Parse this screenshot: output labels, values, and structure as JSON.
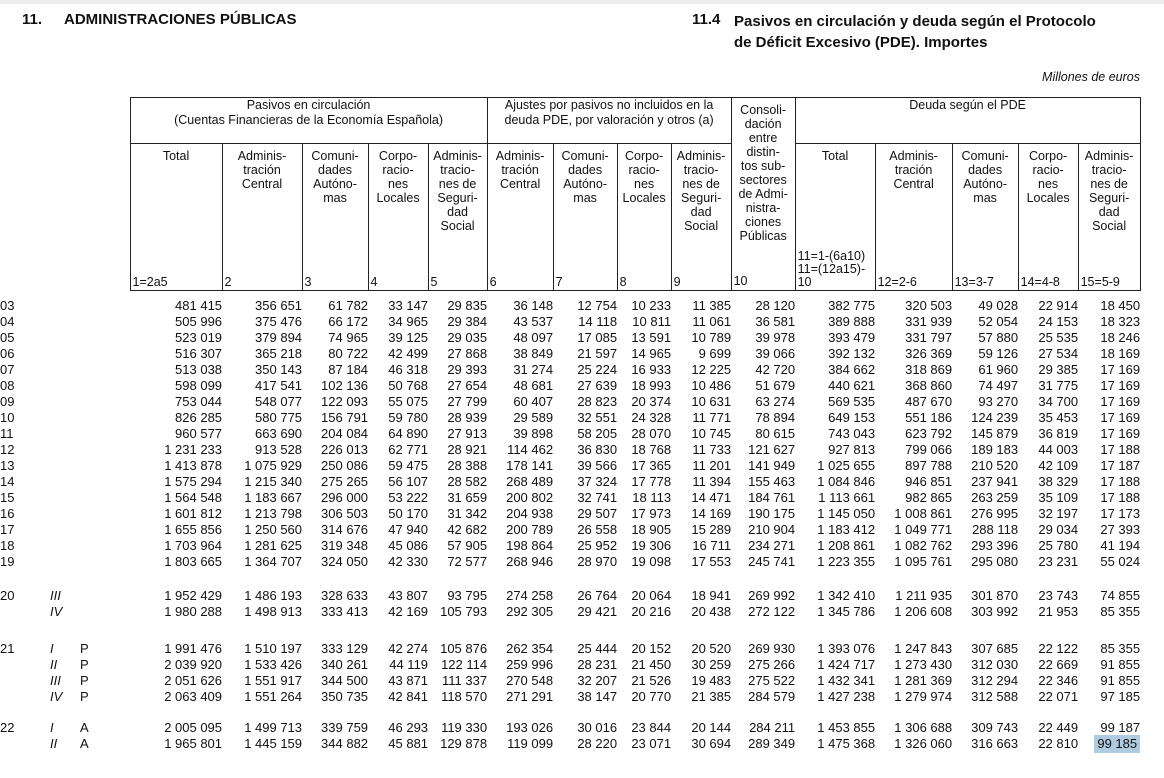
{
  "page": {
    "section_number": "11.",
    "section_title": "ADMINISTRACIONES PÚBLICAS",
    "table_number": "11.4",
    "table_title": "Pasivos en circulación y deuda según el Protocolo\nde Déficit Excesivo (PDE). Importes",
    "units_note": "Millones de euros"
  },
  "table": {
    "groups": [
      {
        "title": "Pasivos en circulación\n(Cuentas Financieras de la Economía Española)"
      },
      {
        "title": "Ajustes por pasivos no incluidos en la\ndeuda PDE, por valoración y otros (a)"
      },
      {
        "title": "Deuda según el PDE"
      }
    ],
    "columns": [
      {
        "name": "Total",
        "num": "1=2a5"
      },
      {
        "name": "Adminis-\ntración\nCentral",
        "num": "2"
      },
      {
        "name": "Comuni-\ndades\nAutóno-\nmas",
        "num": "3"
      },
      {
        "name": "Corpo-\nracio-\nnes\nLocales",
        "num": "4"
      },
      {
        "name": "Adminis-\ntracio-\nnes de\nSeguri-\ndad\nSocial",
        "num": "5"
      },
      {
        "name": "Adminis-\ntración\nCentral",
        "num": "6"
      },
      {
        "name": "Comuni-\ndades\nAutóno-\nmas",
        "num": "7"
      },
      {
        "name": "Corpo-\nracio-\nnes\nLocales",
        "num": "8"
      },
      {
        "name": "Adminis-\ntracio-\nnes de\nSeguri-\ndad\nSocial",
        "num": "9"
      },
      {
        "name": "Consoli-\ndación\nentre\ndistin-\ntos sub-\nsectores\nde Admi-\nnistra-\nciones\nPúblicas",
        "num": "10"
      },
      {
        "name": "Total",
        "num": "11=1-(6a10)\n11=(12a15)-\n10"
      },
      {
        "name": "Adminis-\ntración\nCentral",
        "num": "12=2-6"
      },
      {
        "name": "Comuni-\ndades\nAutóno-\nmas",
        "num": "13=3-7"
      },
      {
        "name": "Corpo-\nracio-\nnes\nLocales",
        "num": "14=4-8"
      },
      {
        "name": "Adminis-\ntracio-\nnes de\nSeguri-\ndad\nSocial",
        "num": "15=5-9"
      }
    ],
    "rows": [
      {
        "year": "03",
        "quarter": "",
        "marker": "",
        "values": [
          "481 415",
          "356 651",
          "61 782",
          "33 147",
          "29 835",
          "36 148",
          "12 754",
          "10 233",
          "11 385",
          "28 120",
          "382 775",
          "320 503",
          "49 028",
          "22 914",
          "18 450"
        ]
      },
      {
        "year": "04",
        "quarter": "",
        "marker": "",
        "values": [
          "505 996",
          "375 476",
          "66 172",
          "34 965",
          "29 384",
          "43 537",
          "14 118",
          "10 811",
          "11 061",
          "36 581",
          "389 888",
          "331 939",
          "52 054",
          "24 153",
          "18 323"
        ]
      },
      {
        "year": "05",
        "quarter": "",
        "marker": "",
        "values": [
          "523 019",
          "379 894",
          "74 965",
          "39 125",
          "29 035",
          "48 097",
          "17 085",
          "13 591",
          "10 789",
          "39 978",
          "393 479",
          "331 797",
          "57 880",
          "25 535",
          "18 246"
        ]
      },
      {
        "year": "06",
        "quarter": "",
        "marker": "",
        "values": [
          "516 307",
          "365 218",
          "80 722",
          "42 499",
          "27 868",
          "38 849",
          "21 597",
          "14 965",
          "9 699",
          "39 066",
          "392 132",
          "326 369",
          "59 126",
          "27 534",
          "18 169"
        ]
      },
      {
        "year": "07",
        "quarter": "",
        "marker": "",
        "values": [
          "513 038",
          "350 143",
          "87 184",
          "46 318",
          "29 393",
          "31 274",
          "25 224",
          "16 933",
          "12 225",
          "42 720",
          "384 662",
          "318 869",
          "61 960",
          "29 385",
          "17 169"
        ]
      },
      {
        "year": "08",
        "quarter": "",
        "marker": "",
        "values": [
          "598 099",
          "417 541",
          "102 136",
          "50 768",
          "27 654",
          "48 681",
          "27 639",
          "18 993",
          "10 486",
          "51 679",
          "440 621",
          "368 860",
          "74 497",
          "31 775",
          "17 169"
        ]
      },
      {
        "year": "09",
        "quarter": "",
        "marker": "",
        "values": [
          "753 044",
          "548 077",
          "122 093",
          "55 075",
          "27 799",
          "60 407",
          "28 823",
          "20 374",
          "10 631",
          "63 274",
          "569 535",
          "487 670",
          "93 270",
          "34 700",
          "17 169"
        ]
      },
      {
        "year": "10",
        "quarter": "",
        "marker": "",
        "values": [
          "826 285",
          "580 775",
          "156 791",
          "59 780",
          "28 939",
          "29 589",
          "32 551",
          "24 328",
          "11 771",
          "78 894",
          "649 153",
          "551 186",
          "124 239",
          "35 453",
          "17 169"
        ]
      },
      {
        "year": "11",
        "quarter": "",
        "marker": "",
        "values": [
          "960 577",
          "663 690",
          "204 084",
          "64 890",
          "27 913",
          "39 898",
          "58 205",
          "28 070",
          "10 745",
          "80 615",
          "743 043",
          "623 792",
          "145 879",
          "36 819",
          "17 169"
        ]
      },
      {
        "year": "12",
        "quarter": "",
        "marker": "",
        "values": [
          "1 231 233",
          "913 528",
          "226 013",
          "62 771",
          "28 921",
          "114 462",
          "36 830",
          "18 768",
          "11 733",
          "121 627",
          "927 813",
          "799 066",
          "189 183",
          "44 003",
          "17 188"
        ]
      },
      {
        "year": "13",
        "quarter": "",
        "marker": "",
        "values": [
          "1 413 878",
          "1 075 929",
          "250 086",
          "59 475",
          "28 388",
          "178 141",
          "39 566",
          "17 365",
          "11 201",
          "141 949",
          "1 025 655",
          "897 788",
          "210 520",
          "42 109",
          "17 187"
        ]
      },
      {
        "year": "14",
        "quarter": "",
        "marker": "",
        "values": [
          "1 575 294",
          "1 215 340",
          "275 265",
          "56 107",
          "28 582",
          "268 489",
          "37 324",
          "17 778",
          "11 394",
          "155 463",
          "1 084 846",
          "946 851",
          "237 941",
          "38 329",
          "17 188"
        ]
      },
      {
        "year": "15",
        "quarter": "",
        "marker": "",
        "values": [
          "1 564 548",
          "1 183 667",
          "296 000",
          "53 222",
          "31 659",
          "200 802",
          "32 741",
          "18 113",
          "14 471",
          "184 761",
          "1 113 661",
          "982 865",
          "263 259",
          "35 109",
          "17 188"
        ]
      },
      {
        "year": "16",
        "quarter": "",
        "marker": "",
        "values": [
          "1 601 812",
          "1 213 798",
          "306 503",
          "50 170",
          "31 342",
          "204 938",
          "29 507",
          "17 973",
          "14 169",
          "190 175",
          "1 145 050",
          "1 008 861",
          "276 995",
          "32 197",
          "17 173"
        ]
      },
      {
        "year": "17",
        "quarter": "",
        "marker": "",
        "values": [
          "1 655 856",
          "1 250 560",
          "314 676",
          "47 940",
          "42 682",
          "200 789",
          "26 558",
          "18 905",
          "15 289",
          "210 904",
          "1 183 412",
          "1 049 771",
          "288 118",
          "29 034",
          "27 393"
        ]
      },
      {
        "year": "18",
        "quarter": "",
        "marker": "",
        "values": [
          "1 703 964",
          "1 281 625",
          "319 348",
          "45 086",
          "57 905",
          "198 864",
          "25 952",
          "19 306",
          "16 711",
          "234 271",
          "1 208 861",
          "1 082 762",
          "293 396",
          "25 780",
          "41 194"
        ]
      },
      {
        "year": "19",
        "quarter": "",
        "marker": "",
        "values": [
          "1 803 665",
          "1 364 707",
          "324 050",
          "42 330",
          "72 577",
          "268 946",
          "28 970",
          "19 098",
          "17 553",
          "245 741",
          "1 223 355",
          "1 095 761",
          "295 080",
          "23 231",
          "55 024"
        ]
      },
      {
        "year": "20",
        "quarter": "III",
        "marker": "",
        "gap": 18,
        "values": [
          "1 952 429",
          "1 486 193",
          "328 633",
          "43 807",
          "93 795",
          "274 258",
          "26 764",
          "20 064",
          "18 941",
          "269 992",
          "1 342 410",
          "1 211 935",
          "301 870",
          "23 743",
          "74 855"
        ]
      },
      {
        "year": "",
        "quarter": "IV",
        "marker": "",
        "values": [
          "1 980 288",
          "1 498 913",
          "333 413",
          "42 169",
          "105 793",
          "292 305",
          "29 421",
          "20 216",
          "20 438",
          "272 122",
          "1 345 786",
          "1 206 608",
          "303 992",
          "21 953",
          "85 355"
        ]
      },
      {
        "year": "21",
        "quarter": "I",
        "marker": "P",
        "gap": 21,
        "values": [
          "1 991 476",
          "1 510 197",
          "333 129",
          "42 274",
          "105 876",
          "262 354",
          "25 444",
          "20 152",
          "20 520",
          "269 930",
          "1 393 076",
          "1 247 843",
          "307 685",
          "22 122",
          "85 355"
        ]
      },
      {
        "year": "",
        "quarter": "II",
        "marker": "P",
        "values": [
          "2 039 920",
          "1 533 426",
          "340 261",
          "44 119",
          "122 114",
          "259 996",
          "28 231",
          "21 450",
          "30 259",
          "275 266",
          "1 424 717",
          "1 273 430",
          "312 030",
          "22 669",
          "91 855"
        ]
      },
      {
        "year": "",
        "quarter": "III",
        "marker": "P",
        "values": [
          "2 051 626",
          "1 551 917",
          "344 500",
          "43 871",
          "111 337",
          "270 548",
          "32 207",
          "21 526",
          "19 483",
          "275 522",
          "1 432 341",
          "1 281 369",
          "312 294",
          "22 346",
          "91 855"
        ]
      },
      {
        "year": "",
        "quarter": "IV",
        "marker": "P",
        "values": [
          "2 063 409",
          "1 551 264",
          "350 735",
          "42 841",
          "118 570",
          "271 291",
          "38 147",
          "20 770",
          "21 385",
          "284 579",
          "1 427 238",
          "1 279 974",
          "312 588",
          "22 071",
          "97 185"
        ]
      },
      {
        "year": "22",
        "quarter": "I",
        "marker": "A",
        "gap": 15,
        "values": [
          "2 005 095",
          "1 499 713",
          "339 759",
          "46 293",
          "119 330",
          "193 026",
          "30 016",
          "23 844",
          "20 144",
          "284 211",
          "1 453 855",
          "1 306 688",
          "309 743",
          "22 449",
          "99 187"
        ]
      },
      {
        "year": "",
        "quarter": "II",
        "marker": "A",
        "values": [
          "1 965 801",
          "1 445 159",
          "344 882",
          "45 881",
          "129 878",
          "119 099",
          "28 220",
          "23 071",
          "30 694",
          "289 349",
          "1 475 368",
          "1 326 060",
          "316 663",
          "22 810",
          "99 185"
        ]
      }
    ]
  },
  "highlight": {
    "row": 24,
    "col": 14,
    "color": "#aecbe0"
  }
}
